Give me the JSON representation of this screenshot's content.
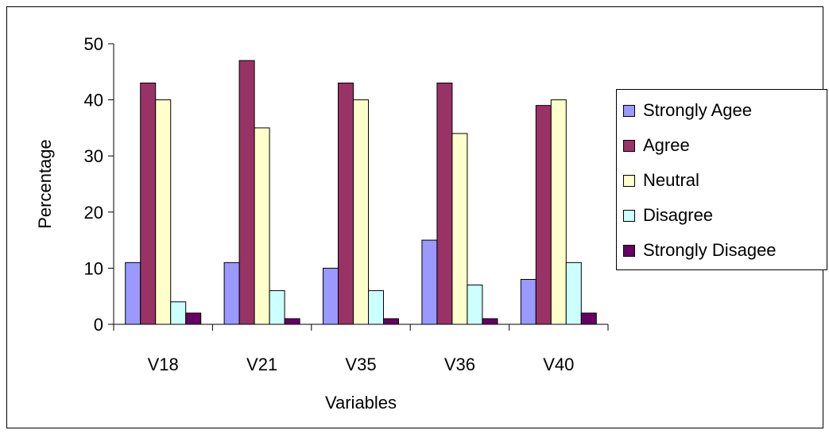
{
  "chart_data": {
    "type": "bar",
    "xlabel": "Variables",
    "ylabel": "Percentage",
    "ylim": [
      0,
      50
    ],
    "yticks": [
      0,
      10,
      20,
      30,
      40,
      50
    ],
    "categories": [
      "V18",
      "V21",
      "V35",
      "V36",
      "V40"
    ],
    "series": [
      {
        "name": "Strongly Agee",
        "color": "#9999FF",
        "values": [
          11,
          11,
          10,
          15,
          8
        ]
      },
      {
        "name": "Agree",
        "color": "#993366",
        "values": [
          43,
          47,
          43,
          43,
          39
        ]
      },
      {
        "name": "Neutral",
        "color": "#FFFFCC",
        "values": [
          40,
          35,
          40,
          34,
          40
        ]
      },
      {
        "name": "Disagree",
        "color": "#CCFFFF",
        "values": [
          4,
          6,
          6,
          7,
          11
        ]
      },
      {
        "name": "Strongly Disagee",
        "color": "#660066",
        "values": [
          2,
          1,
          1,
          1,
          2
        ]
      }
    ],
    "legend_position": "right",
    "grid": false
  }
}
